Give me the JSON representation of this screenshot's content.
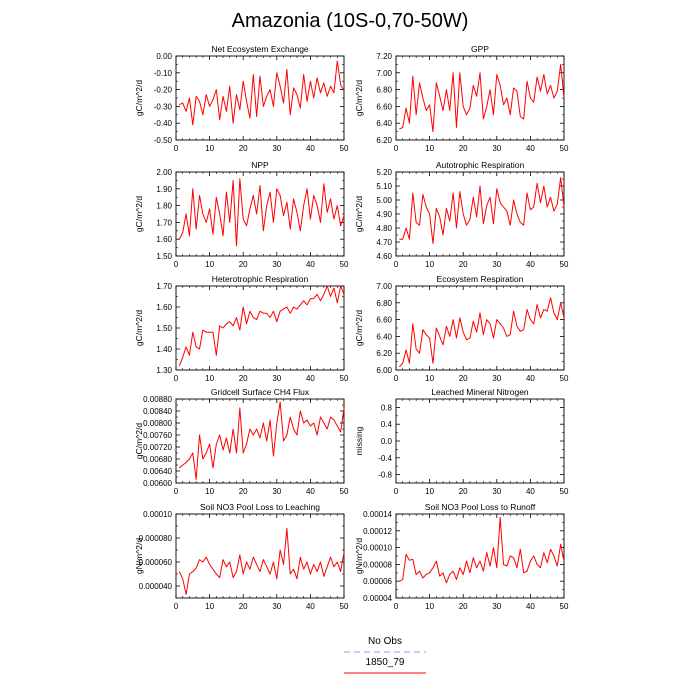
{
  "title": "Amazonia (10S-0,70-50W)",
  "legend": {
    "items": [
      {
        "label": "No Obs",
        "color": "#9999ff",
        "dashed": true
      },
      {
        "label": "1850_79",
        "color": "#ff0000",
        "dashed": false
      }
    ]
  },
  "chart_data": [
    {
      "type": "line",
      "title": "Net Ecosystem Exchange",
      "xlabel": "",
      "ylabel": "gC/m^2/d",
      "xlim": [
        0,
        50
      ],
      "ylim": [
        -0.5,
        0.0
      ],
      "xticks": [
        0,
        10,
        20,
        30,
        40,
        50
      ],
      "yticks": [
        -0.5,
        -0.4,
        -0.3,
        -0.2,
        -0.1,
        0.0
      ],
      "ytick_labels": [
        "-0.50",
        "-0.40",
        "-0.30",
        "-0.20",
        "-0.10",
        "0.00"
      ],
      "series": [
        {
          "name": "1850_79",
          "x_start": 1,
          "values": [
            -0.29,
            -0.28,
            -0.33,
            -0.25,
            -0.41,
            -0.24,
            -0.27,
            -0.35,
            -0.23,
            -0.3,
            -0.26,
            -0.2,
            -0.38,
            -0.24,
            -0.33,
            -0.18,
            -0.4,
            -0.23,
            -0.32,
            -0.15,
            -0.27,
            -0.37,
            -0.11,
            -0.36,
            -0.12,
            -0.3,
            -0.24,
            -0.2,
            -0.3,
            -0.1,
            -0.18,
            -0.28,
            -0.08,
            -0.35,
            -0.19,
            -0.23,
            -0.31,
            -0.11,
            -0.27,
            -0.15,
            -0.25,
            -0.13,
            -0.22,
            -0.16,
            -0.24,
            -0.18,
            -0.22,
            -0.03,
            -0.17,
            -0.21
          ]
        }
      ]
    },
    {
      "type": "line",
      "title": "GPP",
      "xlabel": "",
      "ylabel": "gC/m^2/d",
      "xlim": [
        0,
        50
      ],
      "ylim": [
        6.2,
        7.2
      ],
      "xticks": [
        0,
        10,
        20,
        30,
        40,
        50
      ],
      "yticks": [
        6.2,
        6.4,
        6.6,
        6.8,
        7.0,
        7.2
      ],
      "ytick_labels": [
        "6.20",
        "6.40",
        "6.60",
        "6.80",
        "7.00",
        "7.20"
      ],
      "series": [
        {
          "name": "1850_79",
          "x_start": 1,
          "values": [
            6.33,
            6.35,
            6.58,
            6.4,
            6.96,
            6.5,
            6.88,
            6.7,
            6.55,
            6.62,
            6.3,
            6.88,
            6.72,
            6.55,
            6.8,
            6.55,
            7.0,
            6.35,
            7.0,
            6.6,
            6.5,
            6.58,
            6.85,
            6.72,
            7.0,
            6.45,
            6.6,
            6.8,
            6.5,
            6.98,
            6.85,
            6.62,
            6.7,
            6.5,
            6.82,
            6.78,
            6.48,
            6.45,
            6.9,
            6.7,
            6.65,
            6.95,
            6.78,
            6.98,
            6.75,
            6.85,
            6.7,
            6.78,
            7.1,
            6.7
          ]
        }
      ]
    },
    {
      "type": "line",
      "title": "NPP",
      "xlabel": "",
      "ylabel": "gC/m^2/d",
      "xlim": [
        0,
        50
      ],
      "ylim": [
        1.5,
        2.0
      ],
      "xticks": [
        0,
        10,
        20,
        30,
        40,
        50
      ],
      "yticks": [
        1.5,
        1.6,
        1.7,
        1.8,
        1.9,
        2.0
      ],
      "ytick_labels": [
        "1.50",
        "1.60",
        "1.70",
        "1.80",
        "1.90",
        "2.00"
      ],
      "series": [
        {
          "name": "1850_79",
          "x_start": 1,
          "values": [
            1.6,
            1.64,
            1.75,
            1.62,
            1.9,
            1.66,
            1.86,
            1.75,
            1.7,
            1.78,
            1.63,
            1.85,
            1.75,
            1.62,
            1.88,
            1.7,
            1.95,
            1.56,
            1.96,
            1.72,
            1.68,
            1.78,
            1.86,
            1.75,
            1.92,
            1.65,
            1.8,
            1.88,
            1.7,
            1.9,
            1.86,
            1.74,
            1.82,
            1.66,
            1.84,
            1.76,
            1.65,
            1.8,
            1.9,
            1.72,
            1.86,
            1.8,
            1.7,
            1.93,
            1.76,
            1.84,
            1.72,
            1.8,
            1.68,
            1.74
          ]
        }
      ]
    },
    {
      "type": "line",
      "title": "Autotrophic Respiration",
      "xlabel": "",
      "ylabel": "gC/m^2/d",
      "xlim": [
        0,
        50
      ],
      "ylim": [
        4.6,
        5.2
      ],
      "xticks": [
        0,
        10,
        20,
        30,
        40,
        50
      ],
      "yticks": [
        4.6,
        4.7,
        4.8,
        4.9,
        5.0,
        5.1,
        5.2
      ],
      "ytick_labels": [
        "4.60",
        "4.70",
        "4.80",
        "4.90",
        "5.00",
        "5.10",
        "5.20"
      ],
      "series": [
        {
          "name": "1850_79",
          "x_start": 1,
          "values": [
            4.72,
            4.72,
            4.8,
            4.72,
            5.05,
            4.84,
            4.82,
            5.04,
            4.95,
            4.9,
            4.69,
            4.94,
            4.88,
            4.75,
            4.94,
            4.85,
            5.05,
            4.8,
            5.06,
            4.9,
            4.82,
            4.86,
            5.02,
            4.88,
            5.1,
            4.83,
            4.96,
            5.02,
            4.83,
            5.08,
            4.98,
            4.95,
            4.92,
            4.82,
            5.0,
            4.9,
            4.84,
            4.82,
            5.05,
            4.93,
            4.95,
            5.12,
            4.98,
            5.1,
            4.95,
            5.02,
            4.92,
            4.97,
            5.16,
            4.95
          ]
        }
      ]
    },
    {
      "type": "line",
      "title": "Heterotrophic Respiration",
      "xlabel": "",
      "ylabel": "gC/m^2/d",
      "xlim": [
        0,
        50
      ],
      "ylim": [
        1.3,
        1.7
      ],
      "xticks": [
        0,
        10,
        20,
        30,
        40,
        50
      ],
      "yticks": [
        1.3,
        1.4,
        1.5,
        1.6,
        1.7
      ],
      "ytick_labels": [
        "1.30",
        "1.40",
        "1.50",
        "1.60",
        "1.70"
      ],
      "series": [
        {
          "name": "1850_79",
          "x_start": 1,
          "values": [
            1.32,
            1.36,
            1.41,
            1.37,
            1.48,
            1.41,
            1.4,
            1.49,
            1.48,
            1.48,
            1.48,
            1.37,
            1.51,
            1.5,
            1.52,
            1.53,
            1.51,
            1.55,
            1.49,
            1.6,
            1.52,
            1.58,
            1.55,
            1.54,
            1.58,
            1.57,
            1.57,
            1.55,
            1.58,
            1.53,
            1.58,
            1.59,
            1.6,
            1.57,
            1.6,
            1.59,
            1.61,
            1.63,
            1.61,
            1.64,
            1.64,
            1.66,
            1.63,
            1.66,
            1.7,
            1.65,
            1.69,
            1.62,
            1.7,
            1.66
          ]
        }
      ]
    },
    {
      "type": "line",
      "title": "Ecosystem Respiration",
      "xlabel": "",
      "ylabel": "gC/m^2/d",
      "xlim": [
        0,
        50
      ],
      "ylim": [
        6.0,
        7.0
      ],
      "xticks": [
        0,
        10,
        20,
        30,
        40,
        50
      ],
      "yticks": [
        6.0,
        6.2,
        6.4,
        6.6,
        6.8,
        7.0
      ],
      "ytick_labels": [
        "6.00",
        "6.20",
        "6.40",
        "6.60",
        "6.80",
        "7.00"
      ],
      "series": [
        {
          "name": "1850_79",
          "x_start": 1,
          "values": [
            6.04,
            6.08,
            6.24,
            6.08,
            6.55,
            6.25,
            6.2,
            6.48,
            6.42,
            6.38,
            6.08,
            6.5,
            6.4,
            6.3,
            6.52,
            6.4,
            6.6,
            6.38,
            6.62,
            6.45,
            6.36,
            6.38,
            6.58,
            6.45,
            6.68,
            6.42,
            6.6,
            6.55,
            6.38,
            6.6,
            6.55,
            6.5,
            6.4,
            6.42,
            6.7,
            6.52,
            6.46,
            6.48,
            6.72,
            6.6,
            6.55,
            6.78,
            6.62,
            6.72,
            6.7,
            6.86,
            6.68,
            6.6,
            6.8,
            6.62
          ]
        }
      ]
    },
    {
      "type": "line",
      "title": "Gridcell Surface CH4 Flux",
      "xlabel": "",
      "ylabel": "gC/m^2/d",
      "xlim": [
        0,
        50
      ],
      "ylim": [
        0.006,
        0.0088
      ],
      "xticks": [
        0,
        10,
        20,
        30,
        40,
        50
      ],
      "yticks": [
        0.006,
        0.0064,
        0.0068,
        0.0072,
        0.0076,
        0.008,
        0.0084,
        0.0088
      ],
      "ytick_labels": [
        "0.00600",
        "0.00640",
        "0.00680",
        "0.00720",
        "0.00760",
        "0.00800",
        "0.00840",
        "0.00880"
      ],
      "series": [
        {
          "name": "1850_79",
          "x_start": 1,
          "values": [
            0.0065,
            0.0066,
            0.00668,
            0.0068,
            0.007,
            0.00612,
            0.0076,
            0.0068,
            0.007,
            0.0073,
            0.0065,
            0.0073,
            0.0076,
            0.0071,
            0.0075,
            0.007,
            0.0078,
            0.007,
            0.0085,
            0.007,
            0.0073,
            0.0078,
            0.0076,
            0.0078,
            0.0075,
            0.008,
            0.0074,
            0.0081,
            0.0069,
            0.008,
            0.0087,
            0.0074,
            0.0076,
            0.0082,
            0.0078,
            0.0076,
            0.0084,
            0.008,
            0.0081,
            0.0079,
            0.008,
            0.0076,
            0.0082,
            0.008,
            0.0078,
            0.0082,
            0.0081,
            0.0079,
            0.0077,
            0.0085
          ]
        }
      ]
    },
    {
      "type": "line",
      "title": "Leached Mineral Nitrogen",
      "xlabel": "",
      "ylabel": "missing",
      "xlim": [
        0,
        50
      ],
      "ylim": [
        -1.0,
        1.0
      ],
      "xticks": [
        0,
        10,
        20,
        30,
        40,
        50
      ],
      "yticks": [
        -0.8,
        -0.4,
        0.0,
        0.4,
        0.8
      ],
      "ytick_labels": [
        "-0.8",
        "-0.4",
        "0.0",
        "0.4",
        "0.8"
      ],
      "series": []
    },
    {
      "type": "line",
      "title": "Soil NO3 Pool Loss to Leaching",
      "xlabel": "",
      "ylabel": "gN/m^2/d",
      "xlim": [
        0,
        50
      ],
      "ylim": [
        3e-05,
        0.0001
      ],
      "xticks": [
        0,
        10,
        20,
        30,
        40,
        50
      ],
      "yticks": [
        4e-05,
        6e-05,
        8e-05,
        0.0001
      ],
      "ytick_labels": [
        "0.000040",
        "0.000060",
        "0.000080",
        "0.00010"
      ],
      "series": [
        {
          "name": "1850_79",
          "x_start": 1,
          "values": [
            5.2e-05,
            4.6e-05,
            3.3e-05,
            5e-05,
            5.2e-05,
            5.5e-05,
            6.2e-05,
            6e-05,
            6.4e-05,
            5.8e-05,
            5.4e-05,
            5e-05,
            4.7e-05,
            6.2e-05,
            5.6e-05,
            6e-05,
            4.7e-05,
            5.2e-05,
            6.6e-05,
            5e-05,
            6e-05,
            5.4e-05,
            6.4e-05,
            5.8e-05,
            5.2e-05,
            6.2e-05,
            5.6e-05,
            5e-05,
            6e-05,
            4.6e-05,
            7e-05,
            5.8e-05,
            8.8e-05,
            5e-05,
            5.4e-05,
            4.6e-05,
            6.4e-05,
            5.4e-05,
            6e-05,
            5e-05,
            5.8e-05,
            5.2e-05,
            6e-05,
            4.8e-05,
            5.6e-05,
            6.4e-05,
            5.6e-05,
            6e-05,
            5.2e-05,
            6.8e-05
          ]
        }
      ]
    },
    {
      "type": "line",
      "title": "Soil NO3 Pool Loss to Runoff",
      "xlabel": "",
      "ylabel": "gN/m^2/d",
      "xlim": [
        0,
        50
      ],
      "ylim": [
        4e-05,
        0.00014
      ],
      "xticks": [
        0,
        10,
        20,
        30,
        40,
        50
      ],
      "yticks": [
        4e-05,
        6e-05,
        8e-05,
        0.0001,
        0.00012,
        0.00014
      ],
      "ytick_labels": [
        "0.00004",
        "0.00006",
        "0.00008",
        "0.00010",
        "0.00012",
        "0.00014"
      ],
      "series": [
        {
          "name": "1850_79",
          "x_start": 1,
          "values": [
            6e-05,
            6.2e-05,
            9.2e-05,
            8.5e-05,
            8.6e-05,
            6.8e-05,
            7.2e-05,
            6.4e-05,
            6.8e-05,
            7e-05,
            7.6e-05,
            8.4e-05,
            6.6e-05,
            7e-05,
            5.8e-05,
            6.8e-05,
            7.2e-05,
            6.2e-05,
            7.6e-05,
            6.8e-05,
            8.4e-05,
            7e-05,
            8.8e-05,
            7.6e-05,
            8.4e-05,
            7.2e-05,
            9.4e-05,
            7.8e-05,
            0.0001,
            7.6e-05,
            0.000136,
            8e-05,
            7.8e-05,
            9e-05,
            8.8e-05,
            7.6e-05,
            9.8e-05,
            7e-05,
            7.2e-05,
            8.4e-05,
            9e-05,
            8e-05,
            7.6e-05,
            9.4e-05,
            8.2e-05,
            9.8e-05,
            9e-05,
            7.8e-05,
            0.000104,
            8.4e-05
          ]
        }
      ]
    }
  ]
}
